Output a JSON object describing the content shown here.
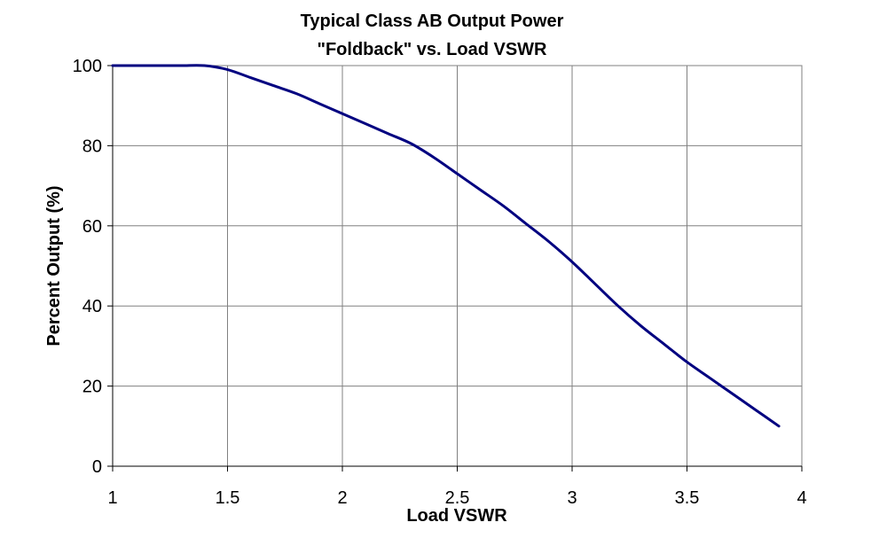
{
  "chart_data": {
    "type": "line",
    "title": "Typical Class AB Output Power",
    "subtitle": "\"Foldback\" vs. Load VSWR",
    "xlabel": "Load VSWR",
    "ylabel": "Percent Output (%)",
    "xlim": [
      1,
      4
    ],
    "ylim": [
      0,
      100
    ],
    "x_ticks": [
      1,
      1.5,
      2,
      2.5,
      3,
      3.5,
      4
    ],
    "x_tick_labels": [
      "1",
      "1.5",
      "2",
      "2.5",
      "3",
      "3.5",
      "4"
    ],
    "y_ticks": [
      0,
      20,
      40,
      60,
      80,
      100
    ],
    "y_tick_labels": [
      "0",
      "20",
      "40",
      "60",
      "80",
      "100"
    ],
    "grid": true,
    "legend": "none",
    "series": [
      {
        "color": "#000080",
        "x": [
          1.0,
          1.1,
          1.2,
          1.3,
          1.4,
          1.5,
          1.6,
          1.7,
          1.8,
          1.9,
          2.0,
          2.1,
          2.2,
          2.3,
          2.4,
          2.5,
          2.6,
          2.7,
          2.8,
          2.9,
          3.0,
          3.1,
          3.2,
          3.3,
          3.4,
          3.5,
          3.6,
          3.7,
          3.8,
          3.9
        ],
        "y": [
          100,
          100,
          100,
          100,
          100,
          99,
          97,
          95,
          93,
          90.5,
          88,
          85.5,
          83,
          80.5,
          77,
          73,
          69,
          65,
          60.5,
          56,
          51,
          45.5,
          40,
          35,
          30.5,
          26,
          22,
          18,
          14,
          10
        ]
      }
    ]
  }
}
